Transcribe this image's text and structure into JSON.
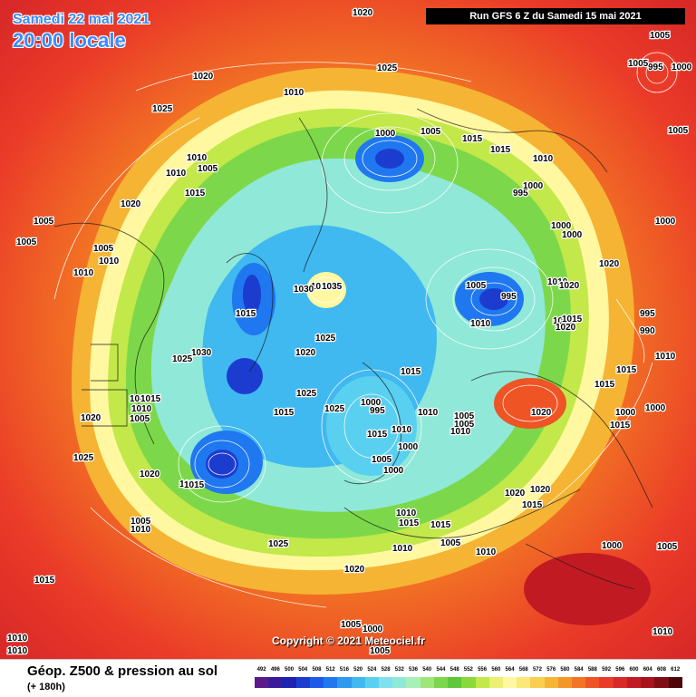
{
  "header": {
    "date": "Samedi 22 mai 2021",
    "time": "20:00 locale",
    "run": "Run GFS 6 Z du Samedi 15 mai 2021"
  },
  "copyright": "Copyright © 2021 Meteociel.fr",
  "legend": {
    "title": "Géop. Z500 & pression au sol",
    "subtitle": "(+ 180h)",
    "scale_values": [
      "492",
      "496",
      "500",
      "504",
      "508",
      "512",
      "516",
      "520",
      "524",
      "528",
      "532",
      "536",
      "540",
      "544",
      "548",
      "552",
      "556",
      "560",
      "564",
      "568",
      "572",
      "576",
      "580",
      "584",
      "588",
      "592",
      "596",
      "600",
      "604",
      "608",
      "612"
    ],
    "scale_colors": [
      "#5a1a8c",
      "#3b1a9a",
      "#1d22b0",
      "#1c3cd0",
      "#1e5ae8",
      "#1f78f0",
      "#2d9af0",
      "#40b8f0",
      "#5ad0f0",
      "#7fe0f0",
      "#90e8d8",
      "#a8f0b8",
      "#9ee67a",
      "#7cd84a",
      "#5ec838",
      "#8ad83a",
      "#c2e84a",
      "#ecf070",
      "#fff8a0",
      "#fbe878",
      "#f8d050",
      "#f6b434",
      "#f49628",
      "#f27424",
      "#ef5424",
      "#ea3a28",
      "#d82828",
      "#c21a22",
      "#a8121e",
      "#800c16",
      "#4c0608"
    ]
  },
  "pressure_labels": [
    "1020",
    "1005",
    "995",
    "1000",
    "1005",
    "1025",
    "1020",
    "1010",
    "1025",
    "1000",
    "1005",
    "1015",
    "1015",
    "1010",
    "1010",
    "1005",
    "1010",
    "995",
    "1000",
    "1005",
    "1000",
    "1000",
    "1005",
    "1005",
    "1000",
    "1010",
    "1015",
    "1020",
    "1020",
    "1005",
    "1010",
    "1035",
    "1030",
    "1015",
    "1005",
    "1010",
    "995",
    "1025",
    "1030",
    "1020",
    "1025",
    "1010",
    "1015",
    "1025",
    "1015",
    "1020",
    "1020",
    "1015",
    "1015",
    "995",
    "990",
    "995",
    "1000",
    "1010",
    "1005",
    "1015",
    "1010",
    "1005",
    "1015",
    "1000",
    "1020",
    "1025",
    "1000",
    "1005",
    "1005",
    "1015",
    "1015",
    "1010",
    "1010",
    "1025",
    "1020",
    "1010",
    "1015",
    "1000",
    "1005",
    "1020",
    "1020",
    "1015",
    "1015",
    "1005",
    "1010",
    "1010",
    "1015",
    "1010",
    "1005",
    "1005",
    "1005",
    "1000",
    "1010",
    "1000",
    "1020",
    "1025",
    "1020",
    "1015",
    "1035",
    "1010",
    "1010",
    "1010",
    "1005",
    "1000",
    "1015",
    "1015"
  ]
}
